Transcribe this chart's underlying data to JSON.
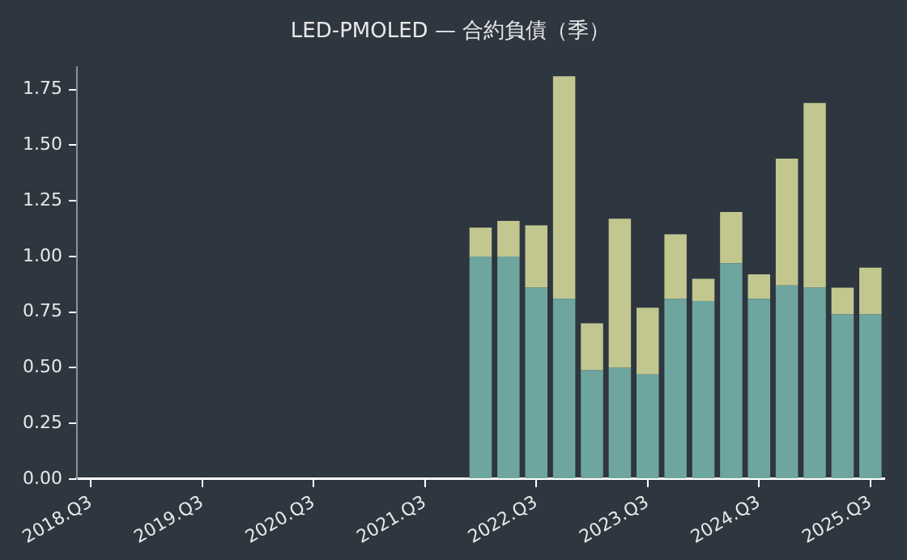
{
  "chart_data": {
    "type": "bar",
    "title": "LED-PMOLED — 合約負債（季）",
    "stacked": true,
    "categories": [
      "2018.Q3",
      null,
      null,
      null,
      "2019.Q3",
      null,
      null,
      null,
      "2020.Q3",
      null,
      null,
      null,
      "2021.Q3",
      null,
      null,
      null,
      "2022.Q3",
      null,
      null,
      null,
      "2023.Q3",
      null,
      null,
      null,
      "2024.Q3",
      null,
      null,
      null,
      "2025.Q3"
    ],
    "series": [
      {
        "color": "#6fa59f",
        "values": [
          null,
          null,
          null,
          null,
          null,
          null,
          null,
          null,
          null,
          null,
          null,
          null,
          null,
          null,
          1.0,
          1.0,
          0.86,
          0.81,
          0.49,
          0.5,
          0.47,
          0.81,
          0.8,
          0.97,
          0.81,
          0.87,
          0.86,
          0.74,
          0.74
        ]
      },
      {
        "color": "#c2c78f",
        "values": [
          null,
          null,
          null,
          null,
          null,
          null,
          null,
          null,
          null,
          null,
          null,
          null,
          null,
          null,
          0.13,
          0.16,
          0.28,
          1.0,
          0.21,
          0.67,
          0.3,
          0.29,
          0.1,
          0.23,
          0.11,
          0.57,
          0.83,
          0.12,
          0.21
        ]
      }
    ],
    "ylim": [
      0,
      1.85
    ],
    "yticks": [
      {
        "value": 0,
        "label": "0.00"
      },
      {
        "value": 0.25,
        "label": "0.25"
      },
      {
        "value": 0.5,
        "label": "0.50"
      },
      {
        "value": 0.75,
        "label": "0.75"
      },
      {
        "value": 1,
        "label": "1.00"
      },
      {
        "value": 1.25,
        "label": "1.25"
      },
      {
        "value": 1.5,
        "label": "1.50"
      },
      {
        "value": 1.75,
        "label": "1.75"
      }
    ],
    "grid": false,
    "legend": false
  }
}
